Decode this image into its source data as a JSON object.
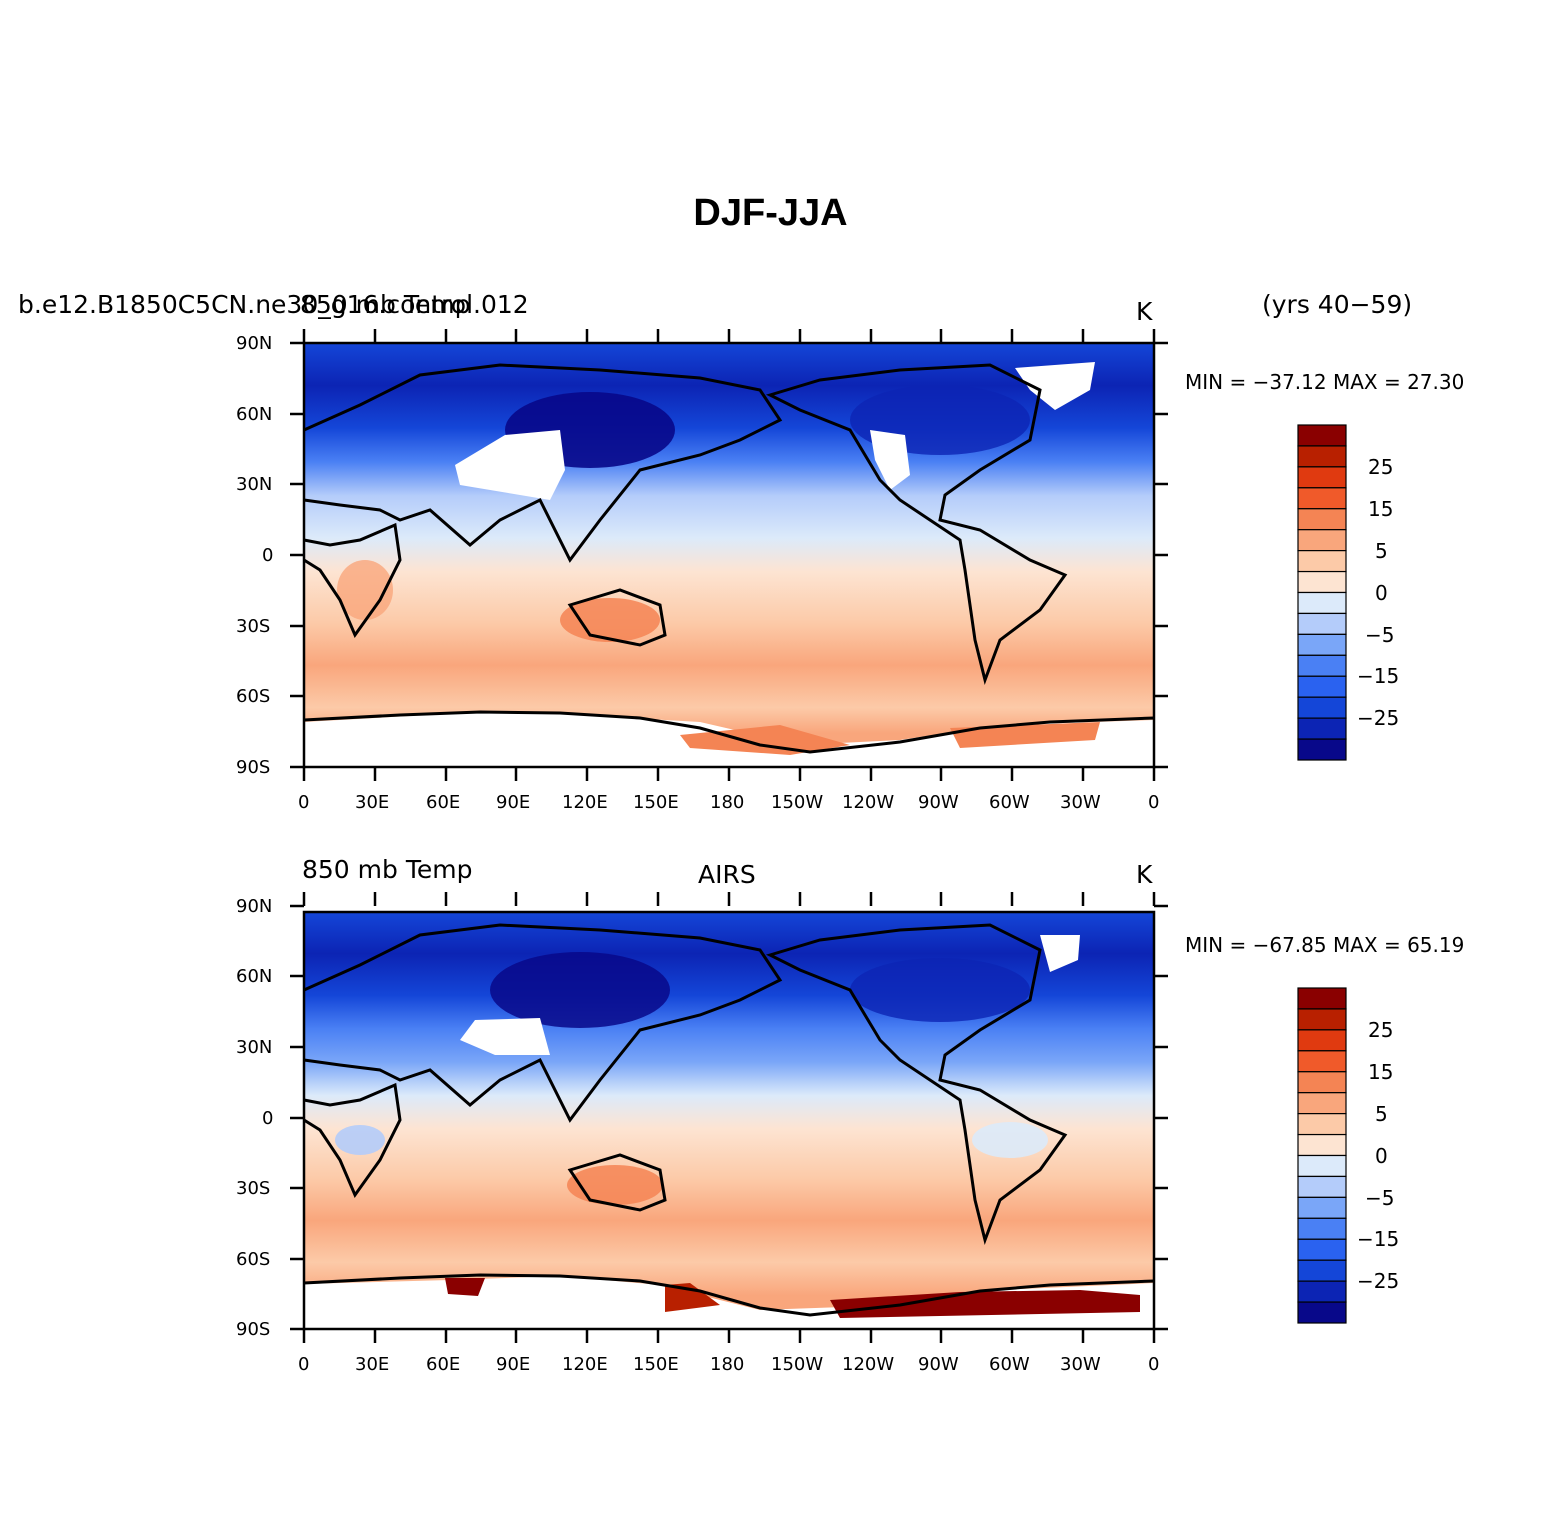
{
  "title": "DJF-JJA",
  "colors": {
    "scale": [
      "#08088a",
      "#0c24b4",
      "#1446d8",
      "#2a62f0",
      "#4a80f4",
      "#7aa6f8",
      "#b4ccfa",
      "#dceafa",
      "#fde4d2",
      "#fccaa8",
      "#f9a67c",
      "#f48454",
      "#f05a2a",
      "#e03a10",
      "#b82000",
      "#8a0000"
    ],
    "land_missing": "#ffffff",
    "coast": "#000000"
  },
  "colorbar_ticks": [
    "25",
    "15",
    "5",
    "0",
    "−5",
    "−15",
    "−25"
  ],
  "lat_labels": [
    "90N",
    "60N",
    "30N",
    "0",
    "30S",
    "60S",
    "90S"
  ],
  "lon_labels": [
    "0",
    "30E",
    "60E",
    "90E",
    "120E",
    "150E",
    "180",
    "150W",
    "120W",
    "90W",
    "60W",
    "30W",
    "0"
  ],
  "panels": [
    {
      "left_label_a": "b.e12.B1850C5CN.ne30_g16.control.012",
      "left_label_b": "850 mb Temp",
      "center_label": "",
      "unit": "K",
      "years": "(yrs 40−59)",
      "stats": "MIN = −37.12  MAX =   27.30"
    },
    {
      "left_label_a": "850 mb Temp",
      "left_label_b": "",
      "center_label": "AIRS",
      "unit": "K",
      "years": "",
      "stats": "MIN = −67.85  MAX =   65.19"
    }
  ]
}
